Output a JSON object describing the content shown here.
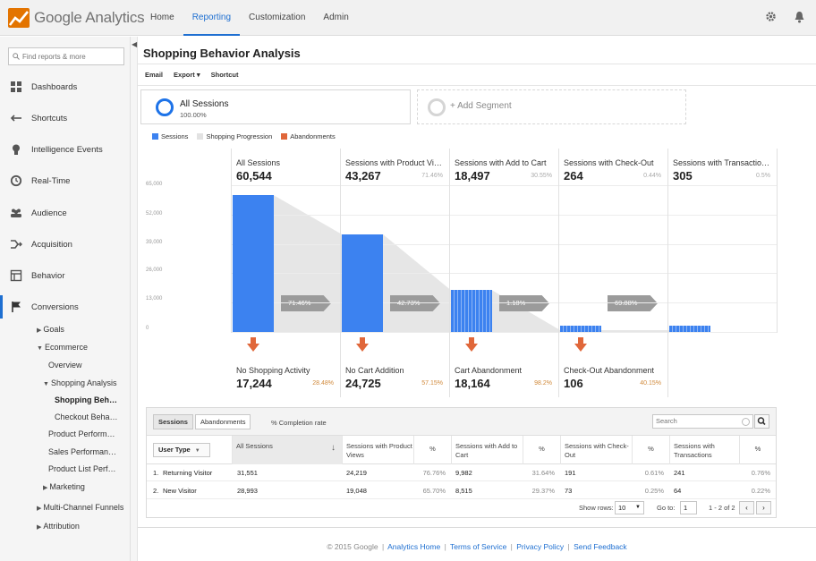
{
  "app": {
    "logo_text": "Google Analytics"
  },
  "topnav": [
    {
      "label": "Home",
      "active": false
    },
    {
      "label": "Reporting",
      "active": true
    },
    {
      "label": "Customization",
      "active": false
    },
    {
      "label": "Admin",
      "active": false
    }
  ],
  "sidebar": {
    "search_placeholder": "Find reports & more",
    "items": [
      {
        "label": "Dashboards",
        "icon": "dashboard-icon"
      },
      {
        "label": "Shortcuts",
        "icon": "shortcut-arrow-icon"
      },
      {
        "label": "Intelligence Events",
        "icon": "lightbulb-icon"
      },
      {
        "label": "Real-Time",
        "icon": "clock-icon"
      },
      {
        "label": "Audience",
        "icon": "people-icon"
      },
      {
        "label": "Acquisition",
        "icon": "acquisition-icon"
      },
      {
        "label": "Behavior",
        "icon": "behavior-icon"
      },
      {
        "label": "Conversions",
        "icon": "flag-icon"
      }
    ],
    "sub": {
      "goals": "Goals",
      "ecommerce": "Ecommerce",
      "overview": "Overview",
      "shopping_analysis": "Shopping Analysis",
      "shopping_behavior": "Shopping Beh…",
      "checkout_behavior": "Checkout Beha…",
      "product_performance": "Product Perform…",
      "sales_performance": "Sales Performan…",
      "product_list": "Product List Perf…",
      "marketing": "Marketing",
      "mcf": "Multi-Channel Funnels",
      "attribution": "Attribution"
    }
  },
  "page": {
    "title": "Shopping Behavior Analysis",
    "actions": {
      "email": "Email",
      "export": "Export ▾",
      "shortcut": "Shortcut"
    }
  },
  "segments": {
    "all_title": "All Sessions",
    "all_pct": "100.00%",
    "add_label": "+ Add Segment"
  },
  "legend": {
    "sessions": "Sessions",
    "progression": "Shopping Progression",
    "abandonments": "Abandonments",
    "colors": {
      "sessions": "#3c82f0",
      "progression": "#e2e2e2",
      "abandonments": "#e0673a"
    }
  },
  "funnel": {
    "yticks": [
      "65,000",
      "52,000",
      "39,000",
      "26,000",
      "13,000",
      "0"
    ],
    "ymax": 65000,
    "stages": [
      {
        "label": "All Sessions",
        "value": "60,544",
        "pct": "",
        "num": 60544
      },
      {
        "label": "Sessions with Product Vi…",
        "value": "43,267",
        "pct": "71.46%",
        "num": 43267
      },
      {
        "label": "Sessions with Add to Cart",
        "value": "18,497",
        "pct": "30.55%",
        "num": 18497
      },
      {
        "label": "Sessions with Check-Out",
        "value": "264",
        "pct": "0.44%",
        "num": 264
      },
      {
        "label": "Sessions with Transactio…",
        "value": "305",
        "pct": "0.5%",
        "num": 305
      }
    ],
    "progression": [
      "71.46%",
      "42.73%",
      "1.18%",
      "69.88%"
    ],
    "abandonments": [
      {
        "label": "No Shopping Activity",
        "value": "17,244",
        "pct": "28.48%"
      },
      {
        "label": "No Cart Addition",
        "value": "24,725",
        "pct": "57.15%"
      },
      {
        "label": "Cart Abandonment",
        "value": "18,164",
        "pct": "98.2%"
      },
      {
        "label": "Check-Out Abandonment",
        "value": "106",
        "pct": "40.15%"
      }
    ]
  },
  "table": {
    "tabs": {
      "sessions": "Sessions",
      "abandonments": "Abandonments"
    },
    "completion": "% Completion rate",
    "search_placeholder": "Search",
    "dimension": "User Type",
    "headers": [
      "All Sessions",
      "Sessions with Product Views",
      "%",
      "Sessions with Add to Cart",
      "%",
      "Sessions with Check-Out",
      "%",
      "Sessions with Transactions",
      "%"
    ],
    "rows": [
      {
        "idx": "1.",
        "name": "Returning Visitor",
        "c": [
          "31,551",
          "24,219",
          "76.76%",
          "9,982",
          "31.64%",
          "191",
          "0.61%",
          "241",
          "0.76%"
        ]
      },
      {
        "idx": "2.",
        "name": "New Visitor",
        "c": [
          "28,993",
          "19,048",
          "65.70%",
          "8,515",
          "29.37%",
          "73",
          "0.25%",
          "64",
          "0.22%"
        ]
      }
    ],
    "footer": {
      "show_rows": "Show rows:",
      "rows_value": "10",
      "goto": "Go to:",
      "goto_value": "1",
      "range": "1 - 2 of 2"
    }
  },
  "footer": {
    "copyright": "© 2015 Google",
    "links": [
      "Analytics Home",
      "Terms of Service",
      "Privacy Policy",
      "Send Feedback"
    ]
  }
}
